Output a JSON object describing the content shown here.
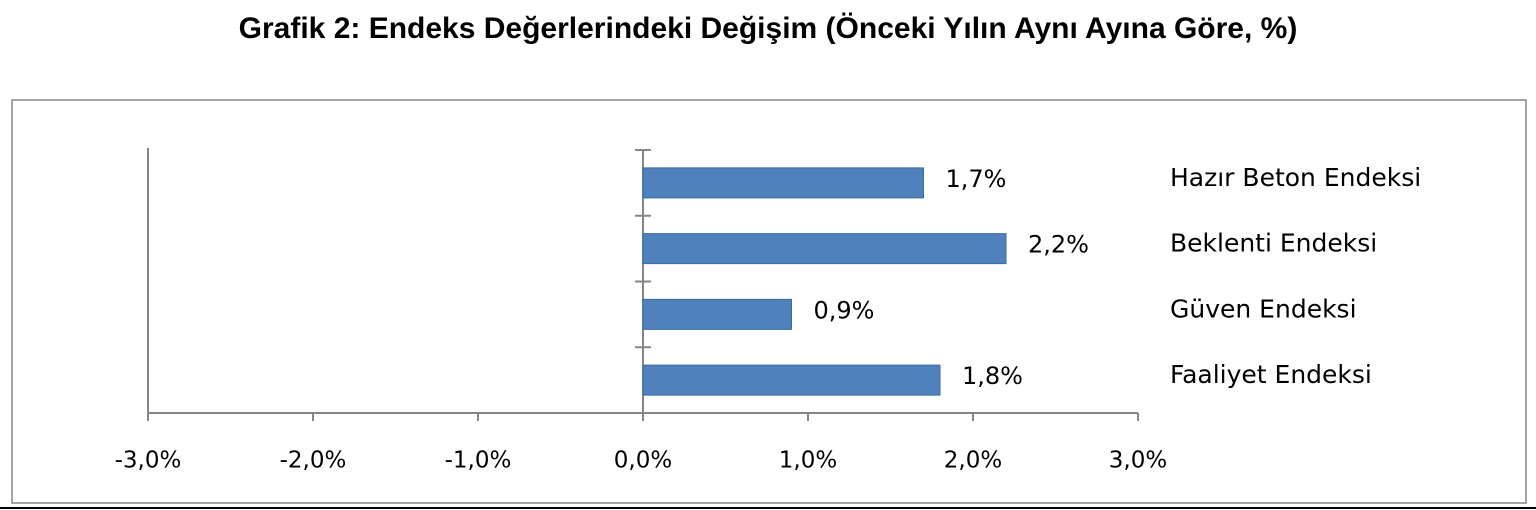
{
  "chart_data": {
    "type": "bar",
    "orientation": "horizontal",
    "title": "Grafik 2: Endeks Değerlerindeki Değişim (Önceki Yılın Aynı Ayına Göre, %)",
    "categories": [
      "Hazır Beton Endeksi",
      "Beklenti Endeksi",
      "Güven Endeksi",
      "Faaliyet Endeksi"
    ],
    "values": [
      1.7,
      2.2,
      0.9,
      1.8
    ],
    "value_labels": [
      "1,7%",
      "2,2%",
      "0,9%",
      "1,8%"
    ],
    "color": "#4f81bd",
    "xlim": [
      -3,
      3
    ],
    "xticks": [
      {
        "value": -3,
        "label": "-3,0%"
      },
      {
        "value": -2,
        "label": "-2,0%"
      },
      {
        "value": -1,
        "label": "-1,0%"
      },
      {
        "value": 0,
        "label": "0,0%"
      },
      {
        "value": 1,
        "label": "1,0%"
      },
      {
        "value": 2,
        "label": "2,0%"
      },
      {
        "value": 3,
        "label": "3,0%"
      }
    ],
    "grid": false
  }
}
